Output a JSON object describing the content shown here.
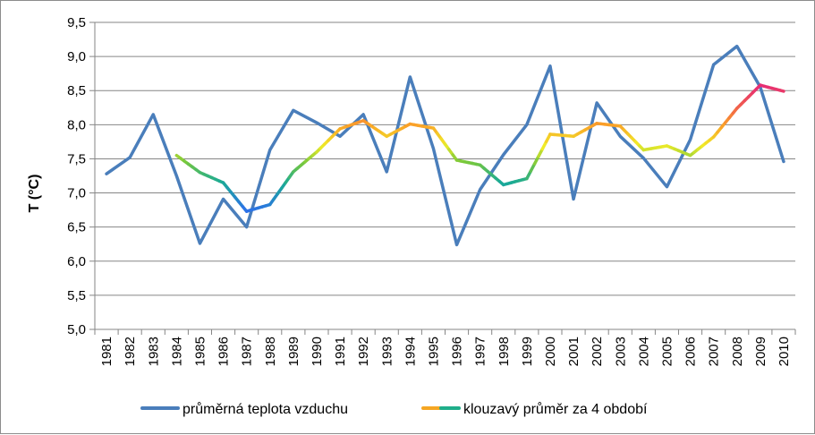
{
  "chart_data": {
    "type": "line",
    "title": "",
    "xlabel": "",
    "ylabel": "T (°C)",
    "ylim": [
      5.0,
      9.5
    ],
    "yticks": [
      "5,0",
      "5,5",
      "6,0",
      "6,5",
      "7,0",
      "7,5",
      "8,0",
      "8,5",
      "9,0",
      "9,5"
    ],
    "ytick_values": [
      5.0,
      5.5,
      6.0,
      6.5,
      7.0,
      7.5,
      8.0,
      8.5,
      9.0,
      9.5
    ],
    "grid": true,
    "legend_position": "bottom",
    "categories": [
      "1981",
      "1982",
      "1983",
      "1984",
      "1985",
      "1986",
      "1987",
      "1988",
      "1989",
      "1990",
      "1991",
      "1992",
      "1993",
      "1994",
      "1995",
      "1996",
      "1997",
      "1998",
      "1999",
      "2000",
      "2001",
      "2002",
      "2003",
      "2004",
      "2005",
      "2006",
      "2007",
      "2008",
      "2009",
      "2010"
    ],
    "series": [
      {
        "name": "průměrná teplota vzduchu",
        "color": "#4a7ebb",
        "values": [
          7.28,
          7.52,
          8.15,
          7.25,
          6.26,
          6.91,
          6.5,
          7.63,
          8.21,
          8.03,
          7.83,
          8.15,
          7.31,
          8.7,
          7.65,
          6.24,
          7.05,
          7.56,
          8.0,
          8.86,
          6.91,
          8.32,
          7.83,
          7.51,
          7.09,
          7.78,
          8.88,
          9.15,
          8.55,
          7.46
        ]
      },
      {
        "name": "klouzavý průměr za 4 období",
        "color_scale": "value-mapped gradient (blue → green → yellow → orange → magenta)",
        "values": [
          null,
          null,
          null,
          7.55,
          7.3,
          7.15,
          6.73,
          6.83,
          7.31,
          7.6,
          7.94,
          8.06,
          7.83,
          8.01,
          7.95,
          7.48,
          7.41,
          7.12,
          7.21,
          7.86,
          7.83,
          8.02,
          7.98,
          7.63,
          7.69,
          7.55,
          7.82,
          8.24,
          8.58,
          8.49
        ]
      }
    ]
  }
}
